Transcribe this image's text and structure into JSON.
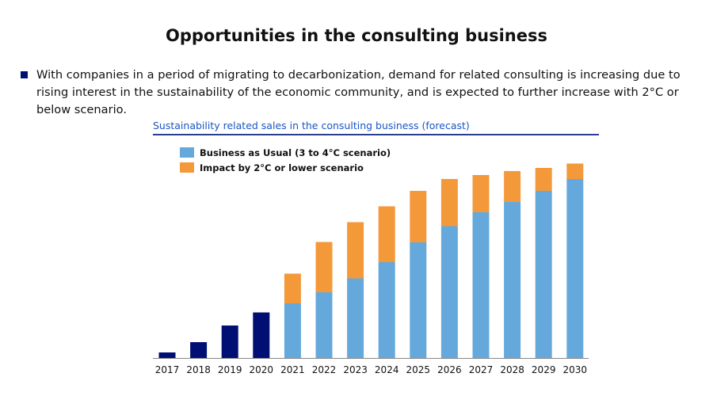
{
  "header": {
    "title": "Opportunities in the consulting business"
  },
  "bullet": {
    "text": "With companies in a period of migrating to decarbonization, demand for related consulting is increasing due to rising interest in the sustainability of the economic community, and is expected to further increase with 2°C or below scenario."
  },
  "chart_data": {
    "type": "bar",
    "stacked": true,
    "title": "Sustainability related sales in the consulting business (forecast)",
    "xlabel": "",
    "ylabel": "",
    "ylim": [
      0,
      250
    ],
    "legend_position": "top-left",
    "grid": false,
    "categories": [
      "2017",
      "2018",
      "2019",
      "2020",
      "2021",
      "2022",
      "2023",
      "2024",
      "2025",
      "2026",
      "2027",
      "2028",
      "2029",
      "2030"
    ],
    "series": [
      {
        "name": "",
        "color": "#000f73",
        "values": [
          7,
          20,
          41,
          57.5,
          0,
          0,
          0,
          0,
          0,
          0,
          0,
          0,
          0,
          0
        ]
      },
      {
        "name": "Business as Usual (3 to 4°C scenario)",
        "color": "#65a9dc",
        "values": [
          0,
          0,
          0,
          0,
          69,
          83,
          100.5,
          121,
          146,
          166.5,
          184,
          197,
          211,
          226
        ]
      },
      {
        "name": "Impact by 2°C or lower scenario",
        "color": "#f4993a",
        "values": [
          0,
          0,
          0,
          0,
          37.5,
          63.5,
          71,
          70.5,
          65,
          59.5,
          47,
          39,
          29,
          19.5
        ]
      }
    ]
  }
}
